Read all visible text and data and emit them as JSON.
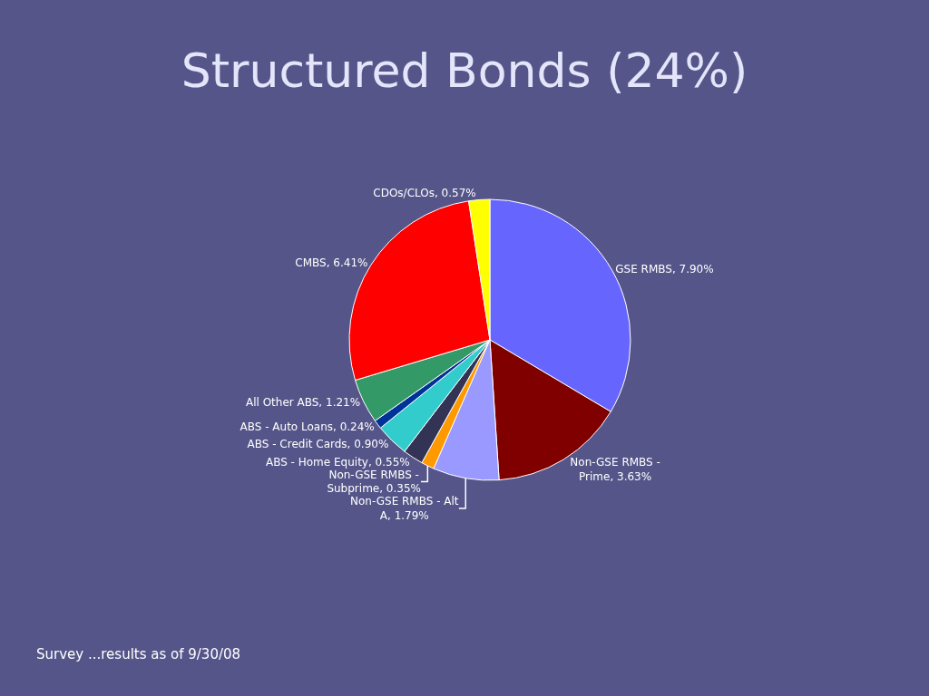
{
  "chart_data": {
    "type": "pie",
    "title": "Structured Bonds (24%)",
    "categories": [
      "GSE RMBS",
      "Non-GSE RMBS - Prime",
      "Non-GSE RMBS - Alt A",
      "Non-GSE RMBS - Subprime",
      "ABS - Home Equity",
      "ABS - Credit Cards",
      "ABS - Auto Loans",
      "All Other ABS",
      "CMBS",
      "CDOs/CLOs"
    ],
    "values": [
      7.9,
      3.63,
      1.79,
      0.35,
      0.55,
      0.9,
      0.24,
      1.21,
      6.41,
      0.57
    ],
    "value_labels": [
      "7.90%",
      "3.63%",
      "1.79%",
      "0.35%",
      "0.55%",
      "0.90%",
      "0.24%",
      "1.21%",
      "6.41%",
      "0.57%"
    ],
    "colors": [
      "#6666ff",
      "#800000",
      "#9999ff",
      "#ff9900",
      "#333355",
      "#33cccc",
      "#003399",
      "#339966",
      "#ff0000",
      "#ffff00"
    ],
    "annotations": [
      "Survey ...results as of 9/30/08"
    ]
  }
}
